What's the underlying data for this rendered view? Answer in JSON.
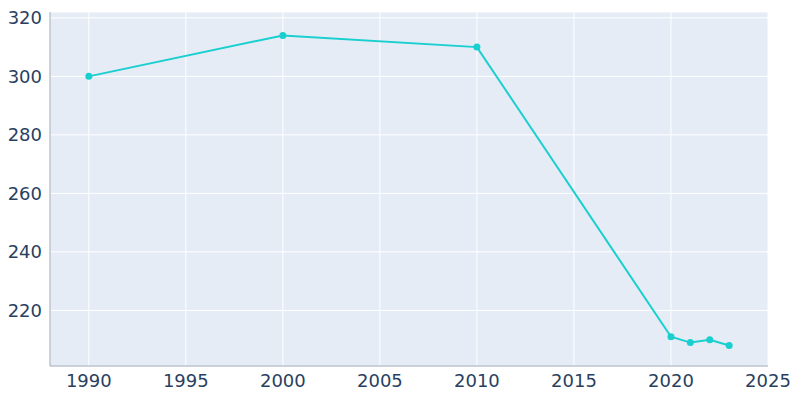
{
  "chart_data": {
    "type": "line",
    "x": [
      1990,
      2000,
      2010,
      2020,
      2021,
      2022,
      2023
    ],
    "values": [
      300,
      314,
      310,
      211,
      209,
      210,
      208
    ],
    "color": "#19cfcf",
    "xlim": [
      1988,
      2025
    ],
    "ylim": [
      201,
      322
    ],
    "xticks": [
      1990,
      1995,
      2000,
      2005,
      2010,
      2015,
      2020,
      2025
    ],
    "yticks": [
      220,
      240,
      260,
      280,
      300,
      320
    ],
    "grid": true,
    "marker": "circle"
  }
}
